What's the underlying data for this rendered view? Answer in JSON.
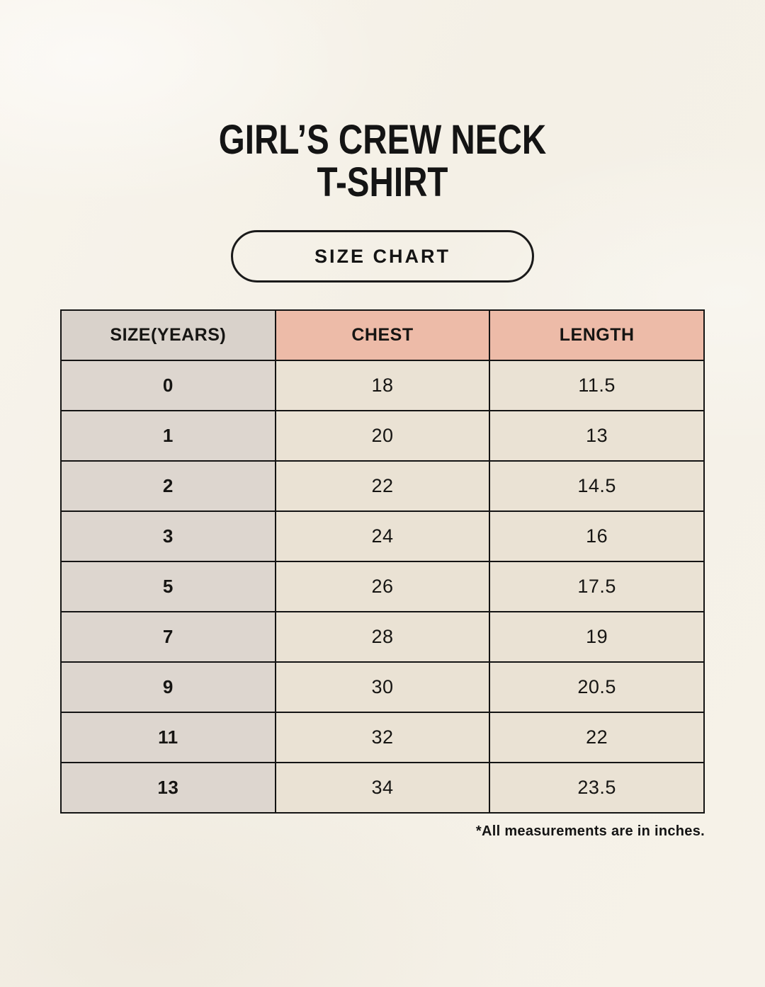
{
  "page": {
    "title_line1": "GIRL’S CREW NECK",
    "title_line2": "T-SHIRT",
    "badge_label": "SIZE CHART",
    "footnote": "*All measurements are in inches."
  },
  "table": {
    "headers": [
      "SIZE(YEARS)",
      "CHEST",
      "LENGTH"
    ],
    "rows": [
      [
        "0",
        "18",
        "11.5"
      ],
      [
        "1",
        "20",
        "13"
      ],
      [
        "2",
        "22",
        "14.5"
      ],
      [
        "3",
        "24",
        "16"
      ],
      [
        "5",
        "26",
        "17.5"
      ],
      [
        "7",
        "28",
        "19"
      ],
      [
        "9",
        "30",
        "20.5"
      ],
      [
        "11",
        "32",
        "22"
      ],
      [
        "13",
        "34",
        "23.5"
      ]
    ],
    "units_note": "inches"
  },
  "colors": {
    "background": "#F5F1E8",
    "header_accent_salmon": "#EDBBA8",
    "header_neutral_gray": "#D9D2CB",
    "size_column_gray": "#DDD6CF",
    "cell_beige": "#EAE2D4",
    "border": "#141414",
    "text": "#141414"
  }
}
